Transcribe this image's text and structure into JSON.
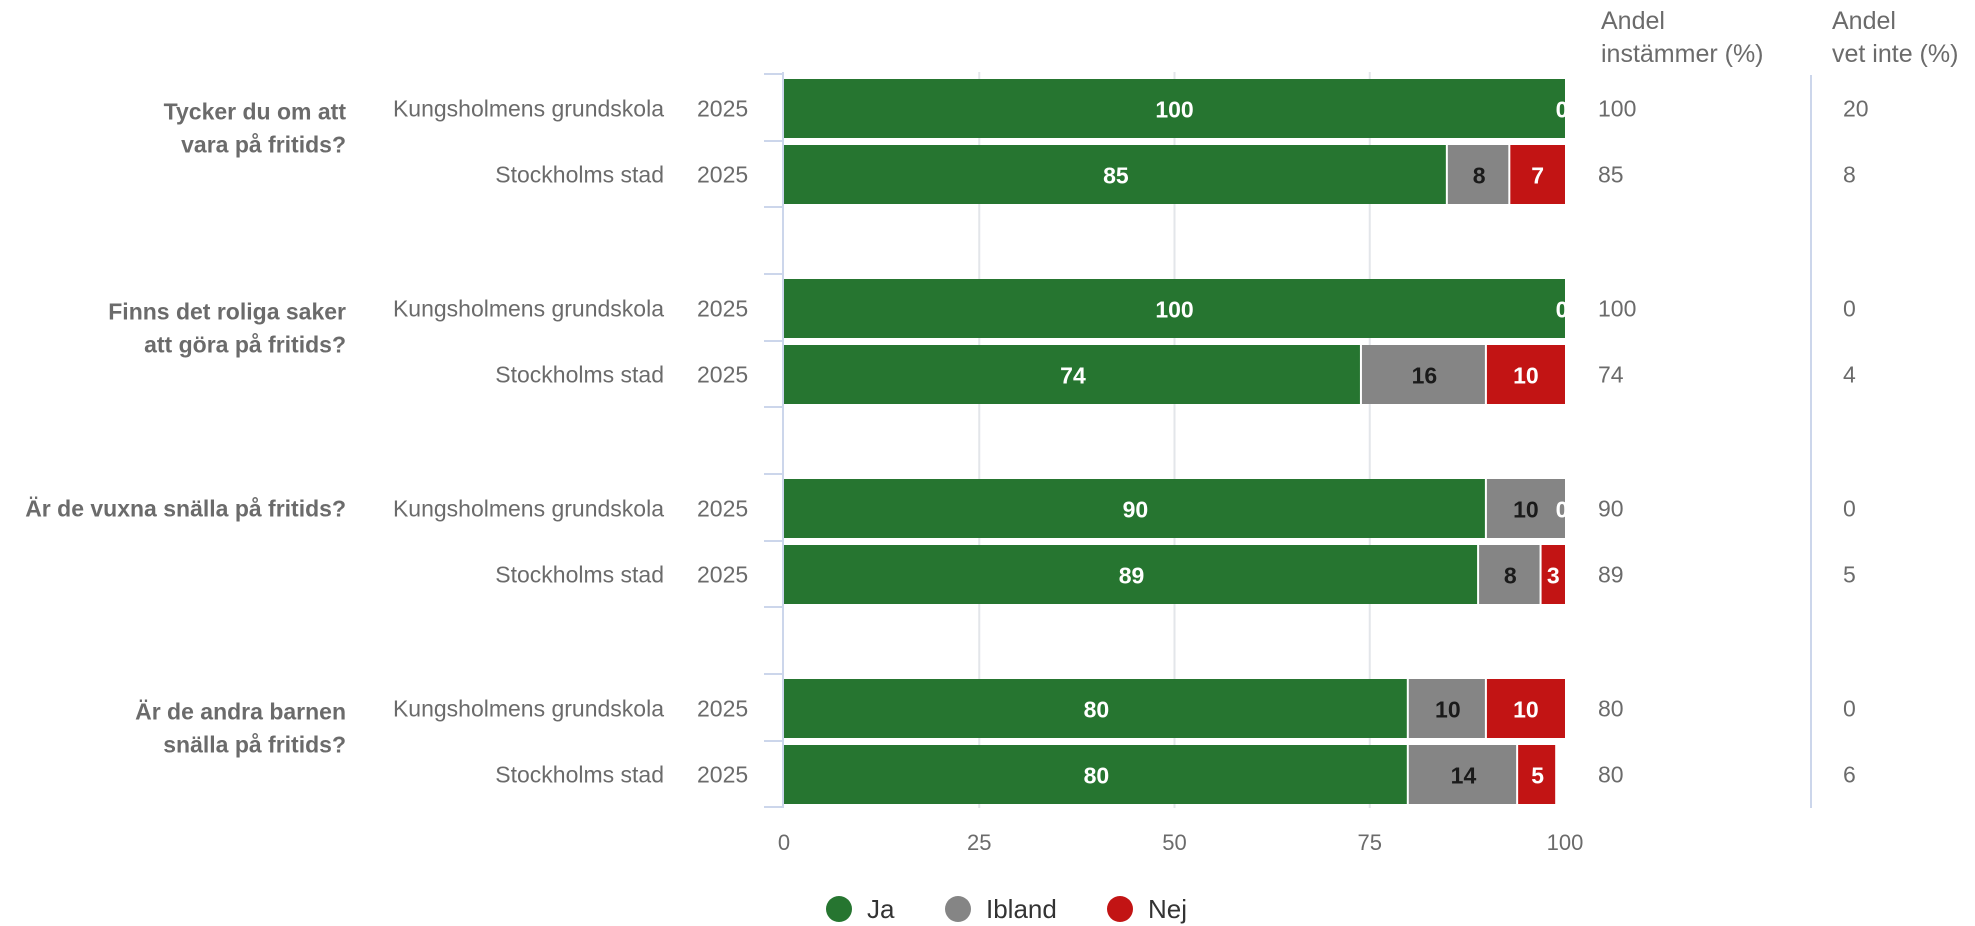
{
  "chart_data": {
    "type": "bar",
    "orientation": "horizontal",
    "stacked": true,
    "xlim": [
      0,
      100
    ],
    "xticks": [
      0,
      25,
      50,
      75,
      100
    ],
    "grid": true,
    "legend_position": "bottom",
    "series": [
      {
        "name": "Ja",
        "color": "#267530",
        "label_color": "#ffffff"
      },
      {
        "name": "Ibland",
        "color": "#858585",
        "label_color": "#1a1a1a"
      },
      {
        "name": "Nej",
        "color": "#c21414",
        "label_color": "#ffffff"
      }
    ],
    "extra_columns": [
      {
        "header_line1": "Andel",
        "header_line2": "instämmer (%)"
      },
      {
        "header_line1": "Andel",
        "header_line2": "vet inte (%)"
      }
    ],
    "questions": [
      {
        "label_lines": [
          "Tycker du om att",
          "vara på fritids?"
        ],
        "rows": [
          {
            "group": "Kungsholmens grundskola",
            "year": "2025",
            "values": [
              100,
              0,
              0
            ],
            "labels": [
              "100",
              "",
              "0"
            ],
            "instammer": "100",
            "vet_inte": "20"
          },
          {
            "group": "Stockholms stad",
            "year": "2025",
            "values": [
              85,
              8,
              7
            ],
            "labels": [
              "85",
              "8",
              "7"
            ],
            "instammer": "85",
            "vet_inte": "8"
          }
        ]
      },
      {
        "label_lines": [
          "Finns det roliga saker",
          "att göra på fritids?"
        ],
        "rows": [
          {
            "group": "Kungsholmens grundskola",
            "year": "2025",
            "values": [
              100,
              0,
              0
            ],
            "labels": [
              "100",
              "",
              "0"
            ],
            "instammer": "100",
            "vet_inte": "0"
          },
          {
            "group": "Stockholms stad",
            "year": "2025",
            "values": [
              74,
              16,
              10
            ],
            "labels": [
              "74",
              "16",
              "10"
            ],
            "instammer": "74",
            "vet_inte": "4"
          }
        ]
      },
      {
        "label_lines": [
          "Är de vuxna snälla på fritids?"
        ],
        "rows": [
          {
            "group": "Kungsholmens grundskola",
            "year": "2025",
            "values": [
              90,
              10,
              0
            ],
            "labels": [
              "90",
              "10",
              "0"
            ],
            "instammer": "90",
            "vet_inte": "0"
          },
          {
            "group": "Stockholms stad",
            "year": "2025",
            "values": [
              89,
              8,
              3
            ],
            "labels": [
              "89",
              "8",
              "3"
            ],
            "instammer": "89",
            "vet_inte": "5"
          }
        ]
      },
      {
        "label_lines": [
          "Är de andra barnen",
          "snälla på fritids?"
        ],
        "rows": [
          {
            "group": "Kungsholmens grundskola",
            "year": "2025",
            "values": [
              80,
              10,
              10
            ],
            "labels": [
              "80",
              "10",
              "10"
            ],
            "instammer": "80",
            "vet_inte": "0"
          },
          {
            "group": "Stockholms stad",
            "year": "2025",
            "values": [
              80,
              14,
              5
            ],
            "labels": [
              "80",
              "14",
              "5"
            ],
            "instammer": "80",
            "vet_inte": "6"
          }
        ]
      }
    ]
  }
}
